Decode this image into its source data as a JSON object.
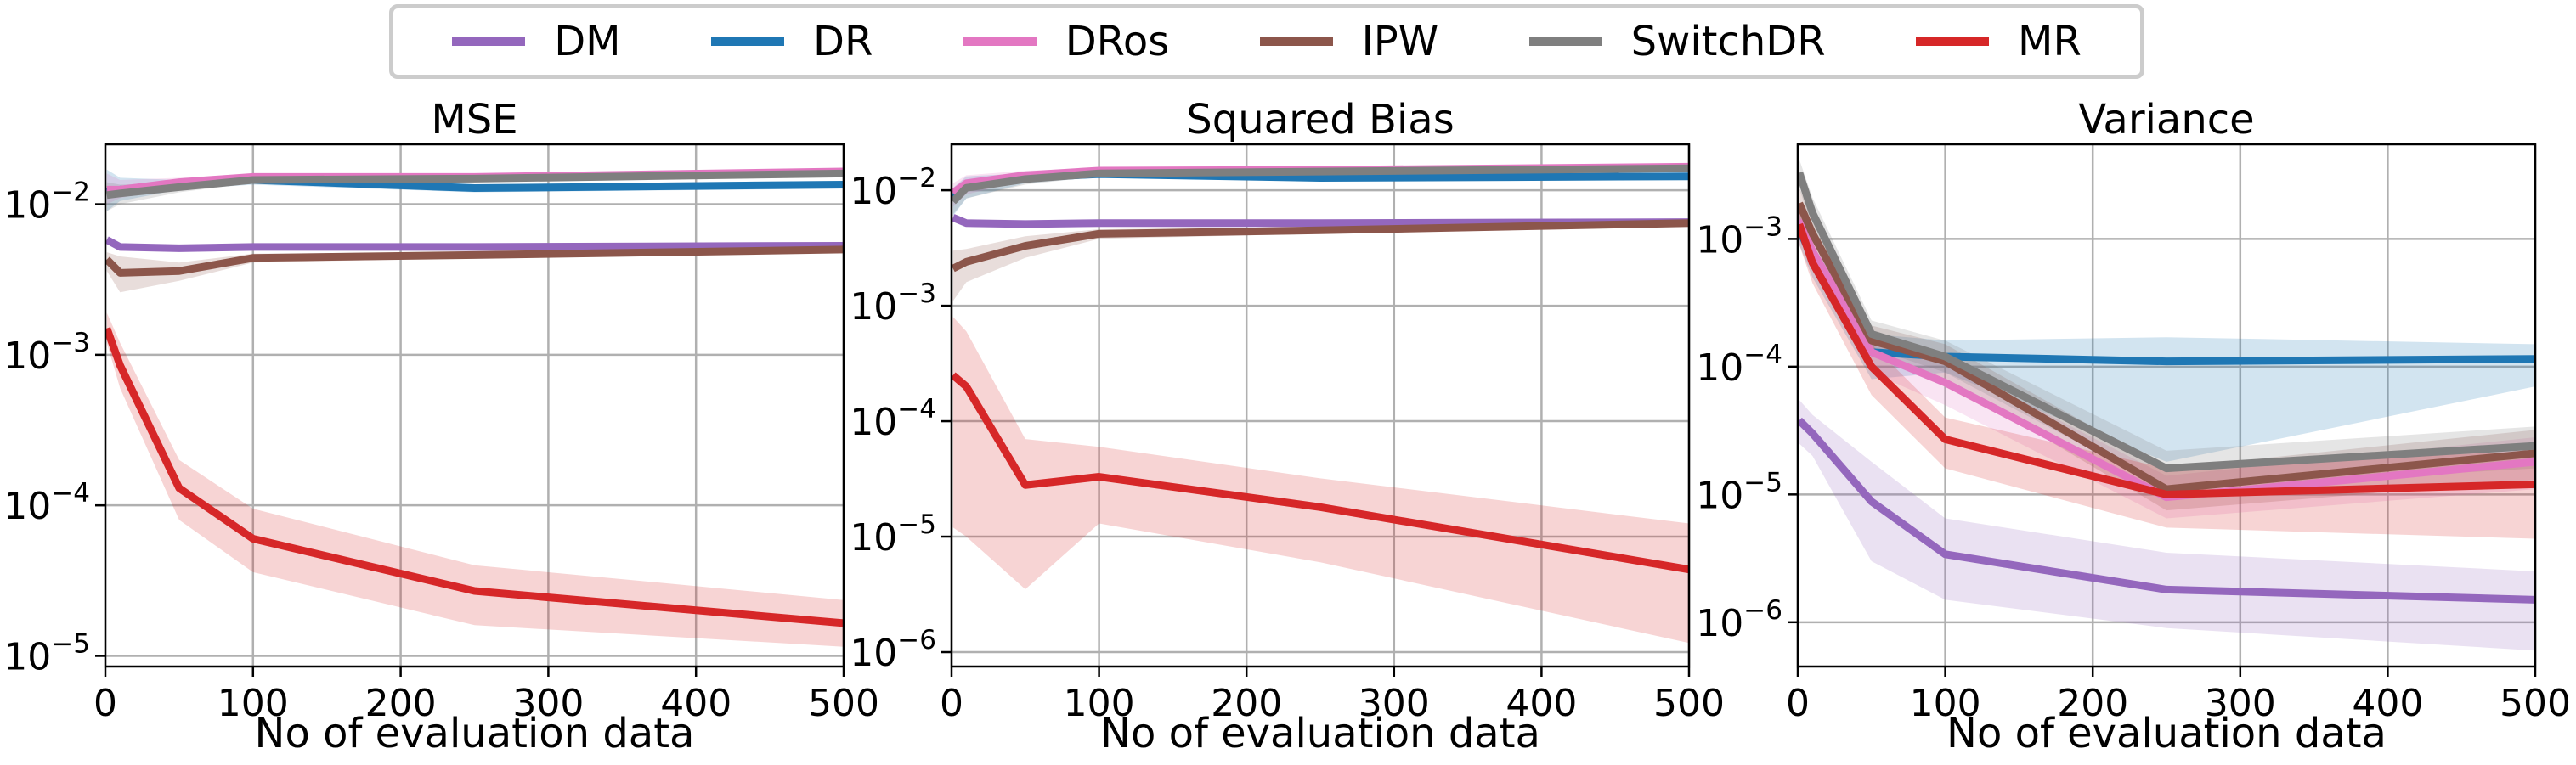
{
  "legend": {
    "placement": "top-center",
    "items": [
      {
        "label": "DM",
        "color": "#9467bd"
      },
      {
        "label": "DR",
        "color": "#1f77b4"
      },
      {
        "label": "DRos",
        "color": "#e377c2"
      },
      {
        "label": "IPW",
        "color": "#8c564b"
      },
      {
        "label": "SwitchDR",
        "color": "#7f7f7f"
      },
      {
        "label": "MR",
        "color": "#d62728"
      }
    ]
  },
  "chart_data": [
    {
      "type": "line",
      "title": "MSE",
      "xlabel": "No of evaluation data",
      "ylabel": "",
      "yscale": "log",
      "xlim": [
        0,
        500
      ],
      "ylim": [
        8.5e-06,
        0.025
      ],
      "xticks": [
        0,
        100,
        200,
        300,
        400,
        500
      ],
      "yticks": [
        1e-05,
        0.0001,
        0.001,
        0.01
      ],
      "ytick_labels": [
        {
          "base": "10",
          "exp": "−5"
        },
        {
          "base": "10",
          "exp": "−4"
        },
        {
          "base": "10",
          "exp": "−3"
        },
        {
          "base": "10",
          "exp": "−2"
        }
      ],
      "grid": true,
      "x": [
        1,
        10,
        50,
        100,
        250,
        500
      ],
      "series": [
        {
          "name": "DM",
          "values": [
            0.0058,
            0.0052,
            0.0051,
            0.0052,
            0.0052,
            0.0053
          ],
          "lower": [
            0.0055,
            0.005,
            0.0049,
            0.005,
            0.005,
            0.0051
          ],
          "upper": [
            0.0061,
            0.0054,
            0.0053,
            0.0054,
            0.0054,
            0.0055
          ]
        },
        {
          "name": "DR",
          "values": [
            0.012,
            0.0125,
            0.0135,
            0.0145,
            0.0128,
            0.0135
          ],
          "lower": [
            0.009,
            0.0105,
            0.0125,
            0.0135,
            0.012,
            0.0127
          ],
          "upper": [
            0.017,
            0.015,
            0.0145,
            0.0155,
            0.0136,
            0.0143
          ]
        },
        {
          "name": "DRos",
          "values": [
            0.0125,
            0.0125,
            0.014,
            0.0152,
            0.0152,
            0.0165
          ],
          "lower": [
            0.01,
            0.011,
            0.013,
            0.0145,
            0.0145,
            0.0158
          ],
          "upper": [
            0.016,
            0.0145,
            0.015,
            0.016,
            0.016,
            0.0172
          ]
        },
        {
          "name": "IPW",
          "values": [
            0.0043,
            0.0035,
            0.0036,
            0.0044,
            0.0046,
            0.005
          ],
          "lower": [
            0.0036,
            0.0026,
            0.0031,
            0.0041,
            0.0044,
            0.0048
          ],
          "upper": [
            0.0048,
            0.0045,
            0.0041,
            0.0047,
            0.0048,
            0.0052
          ]
        },
        {
          "name": "SwitchDR",
          "values": [
            0.0115,
            0.0118,
            0.013,
            0.0145,
            0.0148,
            0.016
          ],
          "lower": [
            0.009,
            0.01,
            0.012,
            0.0138,
            0.0142,
            0.0154
          ],
          "upper": [
            0.014,
            0.0135,
            0.014,
            0.0152,
            0.0154,
            0.0166
          ]
        },
        {
          "name": "MR",
          "values": [
            0.0015,
            0.00085,
            0.00013,
            6e-05,
            2.7e-05,
            1.65e-05
          ],
          "lower": [
            0.0012,
            0.0006,
            8e-05,
            3.6e-05,
            1.6e-05,
            1.15e-05
          ],
          "upper": [
            0.0019,
            0.0012,
            0.0002,
            9.5e-05,
            4e-05,
            2.35e-05
          ]
        }
      ]
    },
    {
      "type": "line",
      "title": "Squared Bias",
      "xlabel": "No of evaluation data",
      "ylabel": "",
      "yscale": "log",
      "xlim": [
        0,
        500
      ],
      "ylim": [
        7.5e-07,
        0.025
      ],
      "xticks": [
        0,
        100,
        200,
        300,
        400,
        500
      ],
      "yticks": [
        1e-06,
        1e-05,
        0.0001,
        0.001,
        0.01
      ],
      "ytick_labels": [
        {
          "base": "10",
          "exp": "−6"
        },
        {
          "base": "10",
          "exp": "−5"
        },
        {
          "base": "10",
          "exp": "−4"
        },
        {
          "base": "10",
          "exp": "−3"
        },
        {
          "base": "10",
          "exp": "−2"
        }
      ],
      "grid": true,
      "x": [
        1,
        10,
        50,
        100,
        250,
        500
      ],
      "series": [
        {
          "name": "DM",
          "values": [
            0.0058,
            0.0052,
            0.0051,
            0.0052,
            0.0052,
            0.0053
          ],
          "lower": [
            0.0054,
            0.0049,
            0.0048,
            0.0049,
            0.0049,
            0.005
          ],
          "upper": [
            0.0062,
            0.0055,
            0.0054,
            0.0055,
            0.0055,
            0.0056
          ]
        },
        {
          "name": "DR",
          "values": [
            0.0085,
            0.011,
            0.0128,
            0.0138,
            0.0128,
            0.0132
          ],
          "lower": [
            0.006,
            0.0085,
            0.0115,
            0.013,
            0.0121,
            0.0125
          ],
          "upper": [
            0.0105,
            0.0132,
            0.014,
            0.0146,
            0.0135,
            0.0139
          ]
        },
        {
          "name": "DRos",
          "values": [
            0.0095,
            0.0115,
            0.0135,
            0.0148,
            0.015,
            0.016
          ],
          "lower": [
            0.0072,
            0.0092,
            0.0122,
            0.014,
            0.0143,
            0.0153
          ],
          "upper": [
            0.0115,
            0.0135,
            0.0148,
            0.0156,
            0.0157,
            0.0167
          ]
        },
        {
          "name": "IPW",
          "values": [
            0.0021,
            0.0024,
            0.0033,
            0.0042,
            0.0045,
            0.0052
          ],
          "lower": [
            0.0011,
            0.0016,
            0.0026,
            0.0038,
            0.0042,
            0.0049
          ],
          "upper": [
            0.003,
            0.0031,
            0.004,
            0.0046,
            0.0048,
            0.0055
          ]
        },
        {
          "name": "SwitchDR",
          "values": [
            0.008,
            0.0105,
            0.0125,
            0.014,
            0.0145,
            0.0155
          ],
          "lower": [
            0.0062,
            0.0085,
            0.0112,
            0.0132,
            0.0139,
            0.0149
          ],
          "upper": [
            0.0098,
            0.0122,
            0.0138,
            0.0148,
            0.0151,
            0.0161
          ]
        },
        {
          "name": "MR",
          "values": [
            0.00025,
            0.0002,
            2.8e-05,
            3.3e-05,
            1.8e-05,
            5.2e-06
          ],
          "lower": [
            1.2e-05,
            1e-05,
            3.5e-06,
            1.3e-05,
            6e-06,
            1.2e-06
          ],
          "upper": [
            0.0008,
            0.0006,
            7e-05,
            6e-05,
            3.2e-05,
            1.3e-05
          ]
        }
      ]
    },
    {
      "type": "line",
      "title": "Variance",
      "xlabel": "No of evaluation data",
      "ylabel": "",
      "yscale": "log",
      "xlim": [
        0,
        500
      ],
      "ylim": [
        4.5e-07,
        0.0055
      ],
      "xticks": [
        0,
        100,
        200,
        300,
        400,
        500
      ],
      "yticks": [
        1e-06,
        1e-05,
        0.0001,
        0.001
      ],
      "ytick_labels": [
        {
          "base": "10",
          "exp": "−6"
        },
        {
          "base": "10",
          "exp": "−5"
        },
        {
          "base": "10",
          "exp": "−4"
        },
        {
          "base": "10",
          "exp": "−3"
        }
      ],
      "grid": true,
      "x": [
        1,
        10,
        50,
        100,
        250,
        500
      ],
      "series": [
        {
          "name": "DM",
          "values": [
            3.8e-05,
            3e-05,
            8.8e-06,
            3.4e-06,
            1.8e-06,
            1.5e-06
          ],
          "lower": [
            2.5e-05,
            2e-05,
            3e-06,
            1.5e-06,
            9e-07,
            6e-07
          ],
          "upper": [
            5.5e-05,
            4.2e-05,
            1.8e-05,
            6.5e-06,
            3.5e-06,
            2.5e-06
          ]
        },
        {
          "name": "DR",
          "values": [
            0.0012,
            0.0007,
            0.00013,
            0.00012,
            0.00011,
            0.000115
          ],
          "lower": [
            0.0009,
            0.0005,
            8e-05,
            9e-05,
            1.8e-05,
            7e-05
          ],
          "upper": [
            0.0016,
            0.0009,
            0.00018,
            0.00016,
            0.00017,
            0.00015
          ]
        },
        {
          "name": "DRos",
          "values": [
            0.0014,
            0.0008,
            0.00013,
            7.5e-05,
            9.5e-06,
            1.8e-05
          ],
          "lower": [
            0.001,
            0.0006,
            9e-05,
            5e-05,
            6.5e-06,
            1.1e-05
          ],
          "upper": [
            0.0019,
            0.0011,
            0.00018,
            0.00011,
            1.4e-05,
            2.8e-05
          ]
        },
        {
          "name": "IPW",
          "values": [
            0.0019,
            0.0011,
            0.00016,
            0.00011,
            1.1e-05,
            2.1e-05
          ],
          "lower": [
            0.0014,
            0.0008,
            0.00012,
            8e-05,
            7.5e-06,
            1.3e-05
          ],
          "upper": [
            0.0025,
            0.0015,
            0.00021,
            0.00015,
            1.6e-05,
            3.2e-05
          ]
        },
        {
          "name": "SwitchDR",
          "values": [
            0.0033,
            0.0016,
            0.00018,
            0.00012,
            1.6e-05,
            2.4e-05
          ],
          "lower": [
            0.0025,
            0.0012,
            0.00014,
            9e-05,
            1.1e-05,
            1.6e-05
          ],
          "upper": [
            0.0042,
            0.0021,
            0.00023,
            0.00016,
            2.2e-05,
            3.4e-05
          ]
        },
        {
          "name": "MR",
          "values": [
            0.0013,
            0.00065,
            0.0001,
            2.7e-05,
            1e-05,
            1.2e-05
          ],
          "lower": [
            0.0009,
            0.00045,
            6e-05,
            1.6e-05,
            5.5e-06,
            4.5e-06
          ],
          "upper": [
            0.0018,
            0.0009,
            0.00015,
            4e-05,
            1.6e-05,
            2.2e-05
          ]
        }
      ]
    }
  ]
}
